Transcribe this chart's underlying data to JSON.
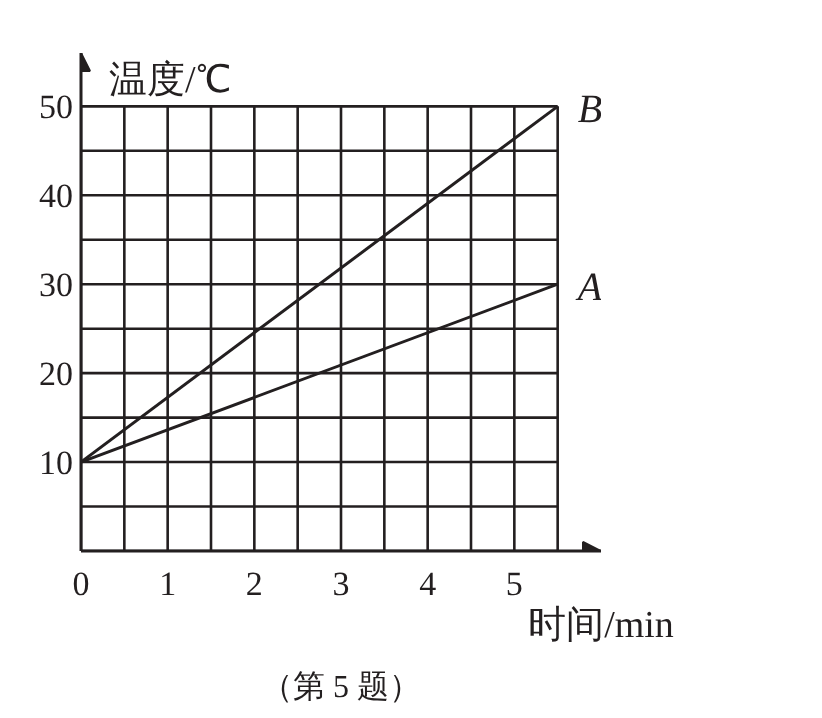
{
  "chart_data": {
    "type": "line",
    "xlabel": "时间/min",
    "ylabel": "温度/℃",
    "annotations": [
      "（第 5 题）"
    ],
    "x": [
      0,
      5.5
    ],
    "series": [
      {
        "name": "A",
        "color": "#231f20",
        "values": [
          10,
          30
        ]
      },
      {
        "name": "B",
        "color": "#231f20",
        "values": [
          10,
          50
        ]
      }
    ],
    "xlim": [
      0,
      6.0
    ],
    "ylim": [
      0,
      56
    ],
    "xticks": [
      0,
      {
        "value": 0.5,
        "label": null
      },
      1,
      {
        "value": 1.5,
        "label": null
      },
      2,
      {
        "value": 2.5,
        "label": null
      },
      3,
      {
        "value": 3.5,
        "label": null
      },
      4,
      {
        "value": 4.5,
        "label": null
      },
      5,
      {
        "value": 5.5,
        "label": null
      }
    ],
    "yticks": [
      {
        "value": 0,
        "label": null
      },
      {
        "value": 5,
        "label": null
      },
      10,
      {
        "value": 15,
        "label": null
      },
      20,
      {
        "value": 25,
        "label": null
      },
      30,
      {
        "value": 35,
        "label": null
      },
      40,
      {
        "value": 45,
        "label": null
      },
      50
    ],
    "grid": true,
    "marker": "none",
    "line_style": "solid"
  }
}
